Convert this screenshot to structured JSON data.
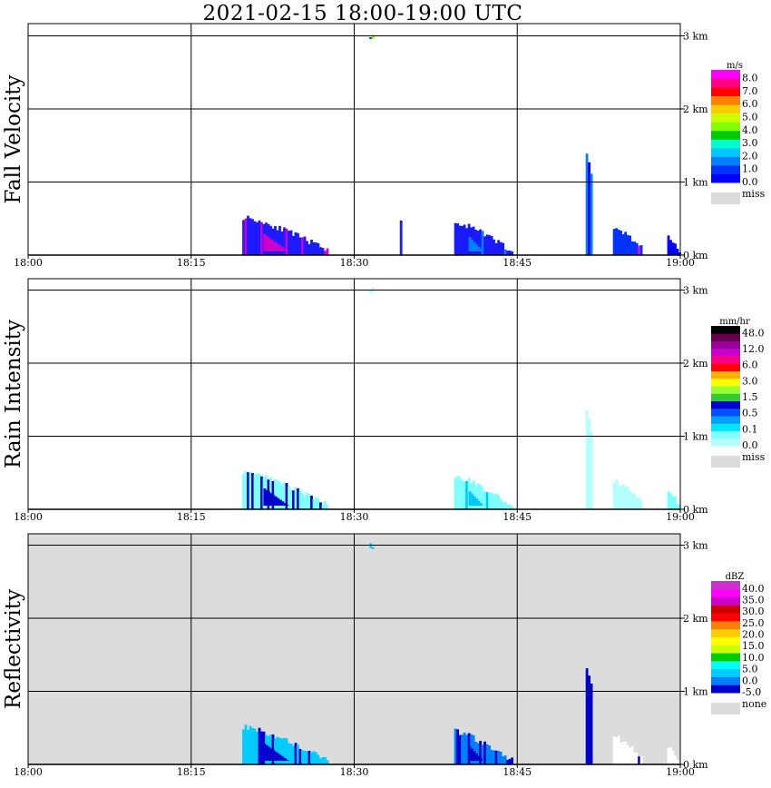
{
  "title": "2021-02-15   18:00-19:00 UTC",
  "xticks": [
    "18:00",
    "18:15",
    "18:30",
    "18:45",
    "19:00"
  ],
  "yticks": [
    "0 km",
    "1 km",
    "2 km",
    "3 km"
  ],
  "chart_data": [
    {
      "type": "heatmap",
      "title": "Fall Velocity",
      "ylabel": "Fall Velocity",
      "xlim_minutes": [
        0,
        60
      ],
      "ylim_km": [
        0,
        3.2
      ],
      "background": "#ffffff",
      "colorbar": {
        "unit": "m/s",
        "colors": [
          "#0000ff",
          "#0033ff",
          "#0080ff",
          "#00c8ff",
          "#00ffcc",
          "#00cc00",
          "#80ff00",
          "#ccff00",
          "#ffcc00",
          "#ff8000",
          "#ff0000",
          "#ff0080",
          "#ff00ff"
        ],
        "labels": [
          "0.0",
          "1.0",
          "2.0",
          "3.0",
          "4.0",
          "5.0",
          "6.0",
          "7.0",
          "8.0"
        ],
        "missing_label": "miss"
      },
      "echoes": [
        {
          "t0": 19.7,
          "t1": 27.5,
          "ztop": 0.52,
          "tail": 0.06,
          "color": "#1a1aff",
          "accent": "#cc00cc"
        },
        {
          "t0": 39.2,
          "t1": 44.5,
          "ztop": 0.45,
          "tail": 0.05,
          "color": "#1a1aff",
          "accent": "#0080ff"
        },
        {
          "t0": 51.3,
          "t1": 51.9,
          "ztop": 1.35,
          "tail": 0.95,
          "color": "#0080ff",
          "accent": "#0000ff"
        },
        {
          "t0": 53.8,
          "t1": 56.5,
          "ztop": 0.38,
          "tail": 0.08,
          "color": "#0033ff",
          "accent": "#ff00ff"
        },
        {
          "t0": 58.8,
          "t1": 60.0,
          "ztop": 0.25,
          "tail": 0.0,
          "color": "#0000ff",
          "accent": "#ff00ff"
        },
        {
          "t0": 31.4,
          "t1": 31.8,
          "ztop": 3.02,
          "tail": 2.96,
          "color": "#0033ff",
          "accent": "#80ff00"
        },
        {
          "t0": 34.2,
          "t1": 34.4,
          "ztop": 0.45,
          "tail": 0.4,
          "color": "#1a1aff",
          "accent": "#1a1aff"
        }
      ]
    },
    {
      "type": "heatmap",
      "title": "Rain Intensity",
      "ylabel": "Rain Intensity",
      "xlim_minutes": [
        0,
        60
      ],
      "ylim_km": [
        0,
        3.2
      ],
      "background": "#ffffff",
      "colorbar": {
        "unit": "mm/hr",
        "colors": [
          "#b3ffff",
          "#80ffff",
          "#00e6ff",
          "#00a0ff",
          "#0050ff",
          "#0000cc",
          "#33cc33",
          "#99ff33",
          "#ffff00",
          "#ffb000",
          "#ff0000",
          "#ff0080",
          "#cc00cc",
          "#990099",
          "#66004d",
          "#000000"
        ],
        "labels": [
          "0.0",
          "0.1",
          "0.5",
          "1.5",
          "3.0",
          "6.0",
          "12.0",
          "48.0"
        ],
        "missing_label": "miss"
      },
      "echoes": [
        {
          "t0": 19.7,
          "t1": 27.5,
          "ztop": 0.52,
          "tail": 0.06,
          "color": "#80ffff",
          "accent": "#0000cc"
        },
        {
          "t0": 39.2,
          "t1": 44.5,
          "ztop": 0.45,
          "tail": 0.05,
          "color": "#80ffff",
          "accent": "#00c8ff"
        },
        {
          "t0": 51.3,
          "t1": 51.9,
          "ztop": 1.35,
          "tail": 0.95,
          "color": "#b3ffff",
          "accent": "#b3ffff"
        },
        {
          "t0": 53.8,
          "t1": 56.5,
          "ztop": 0.38,
          "tail": 0.08,
          "color": "#b3ffff",
          "accent": "#b3ffff"
        },
        {
          "t0": 58.8,
          "t1": 60.0,
          "ztop": 0.25,
          "tail": 0.0,
          "color": "#80ffff",
          "accent": "#80ffff"
        },
        {
          "t0": 31.4,
          "t1": 31.8,
          "ztop": 3.02,
          "tail": 2.96,
          "color": "#b3ffff",
          "accent": "#b3ffff"
        }
      ]
    },
    {
      "type": "heatmap",
      "title": "Reflectivity",
      "ylabel": "Reflectivity",
      "xlim_minutes": [
        0,
        60
      ],
      "ylim_km": [
        0,
        3.2
      ],
      "background": "#dcdcdc",
      "colorbar": {
        "unit": "dBZ",
        "colors": [
          "#0000cc",
          "#0080ff",
          "#00ccff",
          "#00ffff",
          "#00cc00",
          "#ccff00",
          "#ffff00",
          "#ffcc00",
          "#ff8000",
          "#ff0000",
          "#cc0000",
          "#cc00cc",
          "#ff00ff",
          "#cc33cc"
        ],
        "labels": [
          "-5.0",
          "0.0",
          "5.0",
          "10.0",
          "15.0",
          "20.0",
          "25.0",
          "30.0",
          "35.0",
          "40.0"
        ],
        "missing_label": "none"
      },
      "echoes": [
        {
          "t0": 19.7,
          "t1": 27.5,
          "ztop": 0.52,
          "tail": 0.06,
          "color": "#00ccff",
          "accent": "#0000cc"
        },
        {
          "t0": 39.2,
          "t1": 44.5,
          "ztop": 0.45,
          "tail": 0.05,
          "color": "#0080ff",
          "accent": "#0000cc"
        },
        {
          "t0": 51.3,
          "t1": 51.9,
          "ztop": 1.35,
          "tail": 0.95,
          "color": "#0000cc",
          "accent": "#0000cc"
        },
        {
          "t0": 53.8,
          "t1": 56.5,
          "ztop": 0.38,
          "tail": 0.08,
          "color": "#ffffff",
          "accent": "#0000cc"
        },
        {
          "t0": 58.8,
          "t1": 60.0,
          "ztop": 0.25,
          "tail": 0.0,
          "color": "#ffffff",
          "accent": "#ffffff"
        },
        {
          "t0": 31.4,
          "t1": 31.8,
          "ztop": 3.02,
          "tail": 2.96,
          "color": "#00ccff",
          "accent": "#00ccff"
        }
      ]
    }
  ]
}
